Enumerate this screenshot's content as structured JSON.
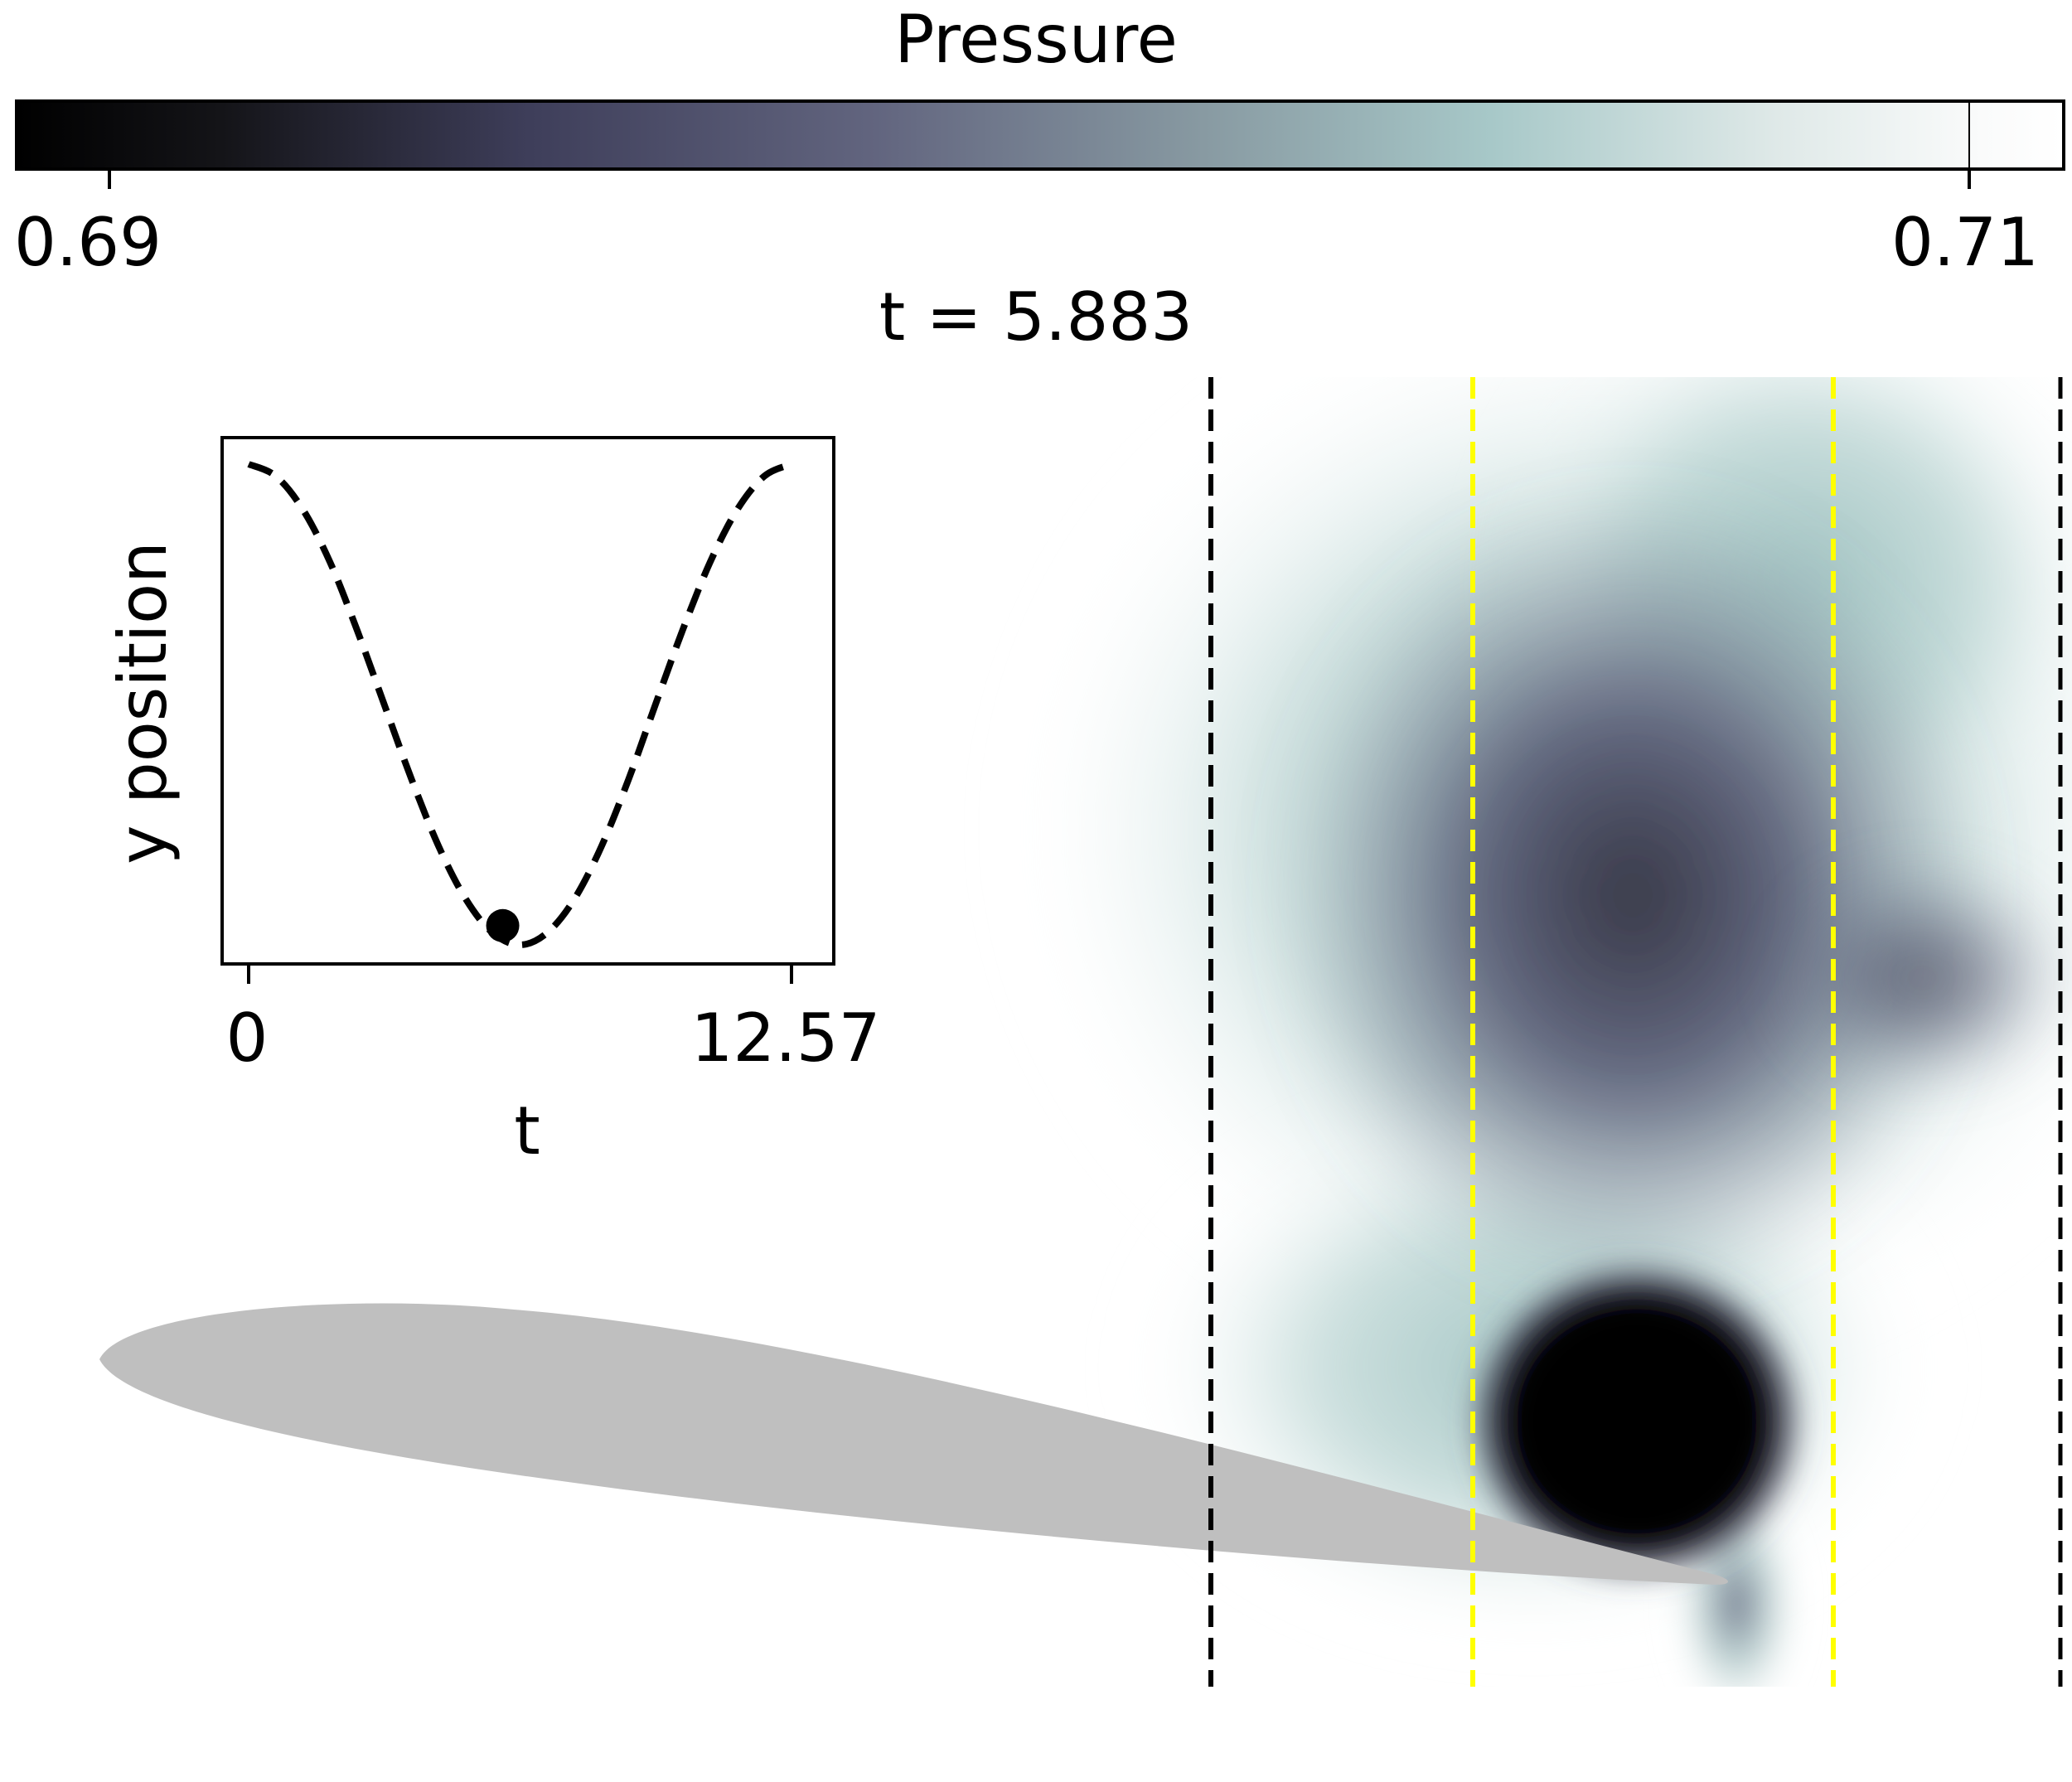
{
  "figure": {
    "title": "t = 5.883"
  },
  "colorbar": {
    "label": "Pressure",
    "tick_labels": [
      "0.69",
      "0.71"
    ],
    "range": [
      0.69,
      0.71
    ]
  },
  "inset": {
    "ylabel": "y position",
    "xlabel": "t",
    "tick_labels": [
      "0",
      "12.57"
    ]
  },
  "colors": {
    "airfoil": "#bfbfbf",
    "outer_lines": "#000000",
    "inner_lines": "#ffff00"
  },
  "chart_data": [
    {
      "type": "line",
      "title": "",
      "xlabel": "t",
      "ylabel": "y position",
      "xlim": [
        0,
        12.57
      ],
      "x_ticks": [
        0,
        12.57
      ],
      "line_style": "dashed",
      "series": [
        {
          "x": [
            0,
            0.63,
            1.26,
            1.89,
            2.51,
            3.14,
            3.77,
            4.4,
            5.03,
            5.65,
            6.28,
            6.91,
            7.54,
            8.17,
            8.8,
            9.42,
            10.05,
            10.68,
            11.31,
            11.94,
            12.57
          ],
          "values": [
            1.0,
            0.95,
            0.81,
            0.59,
            0.31,
            0.0,
            -0.31,
            -0.59,
            -0.81,
            -0.95,
            -1.0,
            -0.95,
            -0.81,
            -0.59,
            -0.31,
            0.0,
            0.31,
            0.59,
            0.81,
            0.95,
            1.0
          ]
        }
      ],
      "marker": {
        "x": 5.883,
        "y": -0.92
      }
    },
    {
      "type": "heatmap",
      "title": "t = 5.883",
      "colorbar_label": "Pressure",
      "colorbar_range": [
        0.69,
        0.71
      ],
      "grid": false
    }
  ]
}
